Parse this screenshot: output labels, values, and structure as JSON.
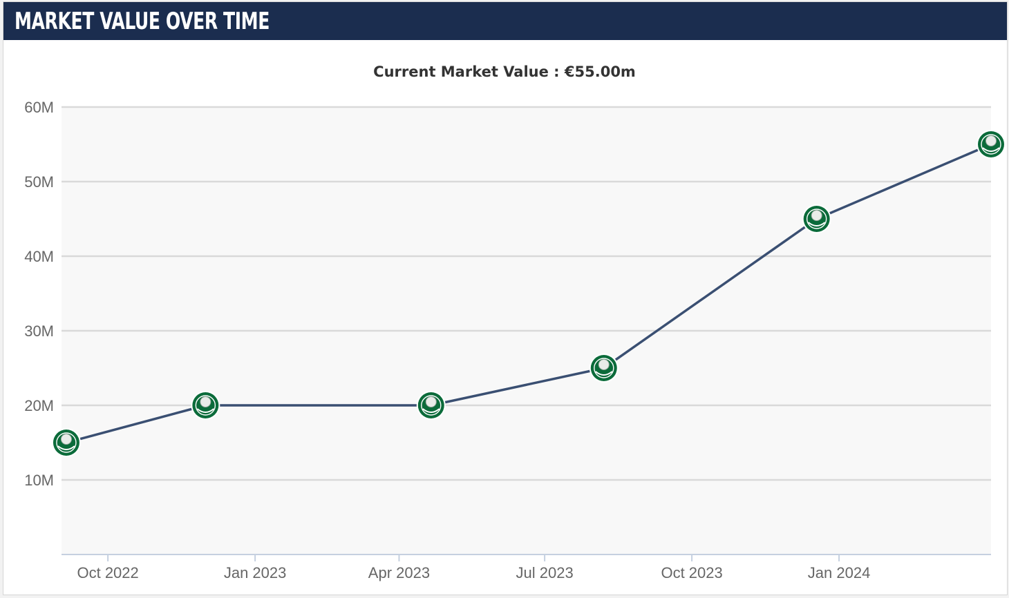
{
  "header": {
    "title": "MARKET VALUE OVER TIME"
  },
  "colors": {
    "header_bg": "#1b2d4f",
    "line": "#3a4f72",
    "marker_fill": "#0b6b3a",
    "plot_bg": "#f8f8f8",
    "grid": "#d9d9d9"
  },
  "chart_data": {
    "type": "line",
    "subtitle": "Current Market Value : €55.00m",
    "x_tick_labels": [
      "Oct 2022",
      "Jan 2023",
      "Apr 2023",
      "Jul 2023",
      "Oct 2023",
      "Jan 2024"
    ],
    "y_tick_labels": [
      "10M",
      "20M",
      "30M",
      "40M",
      "50M",
      "60M"
    ],
    "y_ticks": [
      10,
      20,
      30,
      40,
      50,
      60
    ],
    "ylim": [
      0,
      60
    ],
    "y_unit": "M",
    "xlim": [
      "2022-09-02",
      "2024-04-05"
    ],
    "grid": true,
    "legend": "none",
    "marker_icon": "palmeiras-crest-icon",
    "series": [
      {
        "points": [
          {
            "x": "2022-09-05",
            "y": 15
          },
          {
            "x": "2022-12-01",
            "y": 20
          },
          {
            "x": "2023-04-21",
            "y": 20
          },
          {
            "x": "2023-08-07",
            "y": 25
          },
          {
            "x": "2023-12-18",
            "y": 45
          },
          {
            "x": "2024-04-05",
            "y": 55
          }
        ]
      }
    ]
  }
}
